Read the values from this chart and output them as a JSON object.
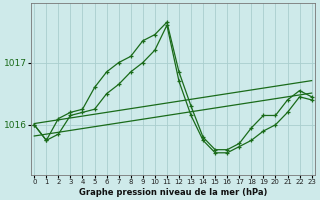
{
  "title": "Graphe pression niveau de la mer (hPa)",
  "background_color": "#ceeaea",
  "grid_color": "#aacece",
  "line_color": "#1a6b1a",
  "hours": [
    0,
    1,
    2,
    3,
    4,
    5,
    6,
    7,
    8,
    9,
    10,
    11,
    12,
    13,
    14,
    15,
    16,
    17,
    18,
    19,
    20,
    21,
    22,
    23
  ],
  "series_main": [
    1016.0,
    1015.75,
    1015.85,
    1016.15,
    1016.2,
    1016.25,
    1016.5,
    1016.65,
    1016.85,
    1017.0,
    1017.2,
    1017.6,
    1016.7,
    1016.15,
    1015.75,
    1015.55,
    1015.55,
    1015.65,
    1015.75,
    1015.9,
    1016.0,
    1016.2,
    1016.45,
    1016.4
  ],
  "series_high": [
    1016.0,
    1015.75,
    1016.1,
    1016.2,
    1016.25,
    1016.6,
    1016.85,
    1017.0,
    1017.1,
    1017.35,
    1017.45,
    1017.65,
    1016.85,
    1016.3,
    1015.8,
    1015.6,
    1015.6,
    1015.7,
    1015.95,
    1016.15,
    1016.15,
    1016.4,
    1016.55,
    1016.45
  ],
  "series_linear_high": [
    1016.02,
    1016.05,
    1016.08,
    1016.11,
    1016.14,
    1016.17,
    1016.2,
    1016.23,
    1016.26,
    1016.29,
    1016.32,
    1016.35,
    1016.38,
    1016.41,
    1016.44,
    1016.47,
    1016.5,
    1016.53,
    1016.56,
    1016.59,
    1016.62,
    1016.65,
    1016.68,
    1016.71
  ],
  "series_linear_low": [
    1015.82,
    1015.85,
    1015.88,
    1015.91,
    1015.94,
    1015.97,
    1016.0,
    1016.03,
    1016.06,
    1016.09,
    1016.12,
    1016.15,
    1016.18,
    1016.21,
    1016.24,
    1016.27,
    1016.3,
    1016.33,
    1016.36,
    1016.39,
    1016.42,
    1016.45,
    1016.48,
    1016.51
  ],
  "yticks": [
    1016,
    1017
  ],
  "ylim": [
    1015.2,
    1017.95
  ],
  "xlim": [
    -0.3,
    23.3
  ],
  "xtick_labels": [
    "0",
    "1",
    "2",
    "3",
    "4",
    "5",
    "6",
    "7",
    "8",
    "9",
    "10",
    "11",
    "12",
    "13",
    "14",
    "15",
    "16",
    "17",
    "18",
    "19",
    "20",
    "21",
    "22",
    "23"
  ],
  "ylabel_color": "#1a6b1a",
  "title_fontsize": 6.0,
  "ytick_fontsize": 6.5,
  "xtick_fontsize": 5.0
}
